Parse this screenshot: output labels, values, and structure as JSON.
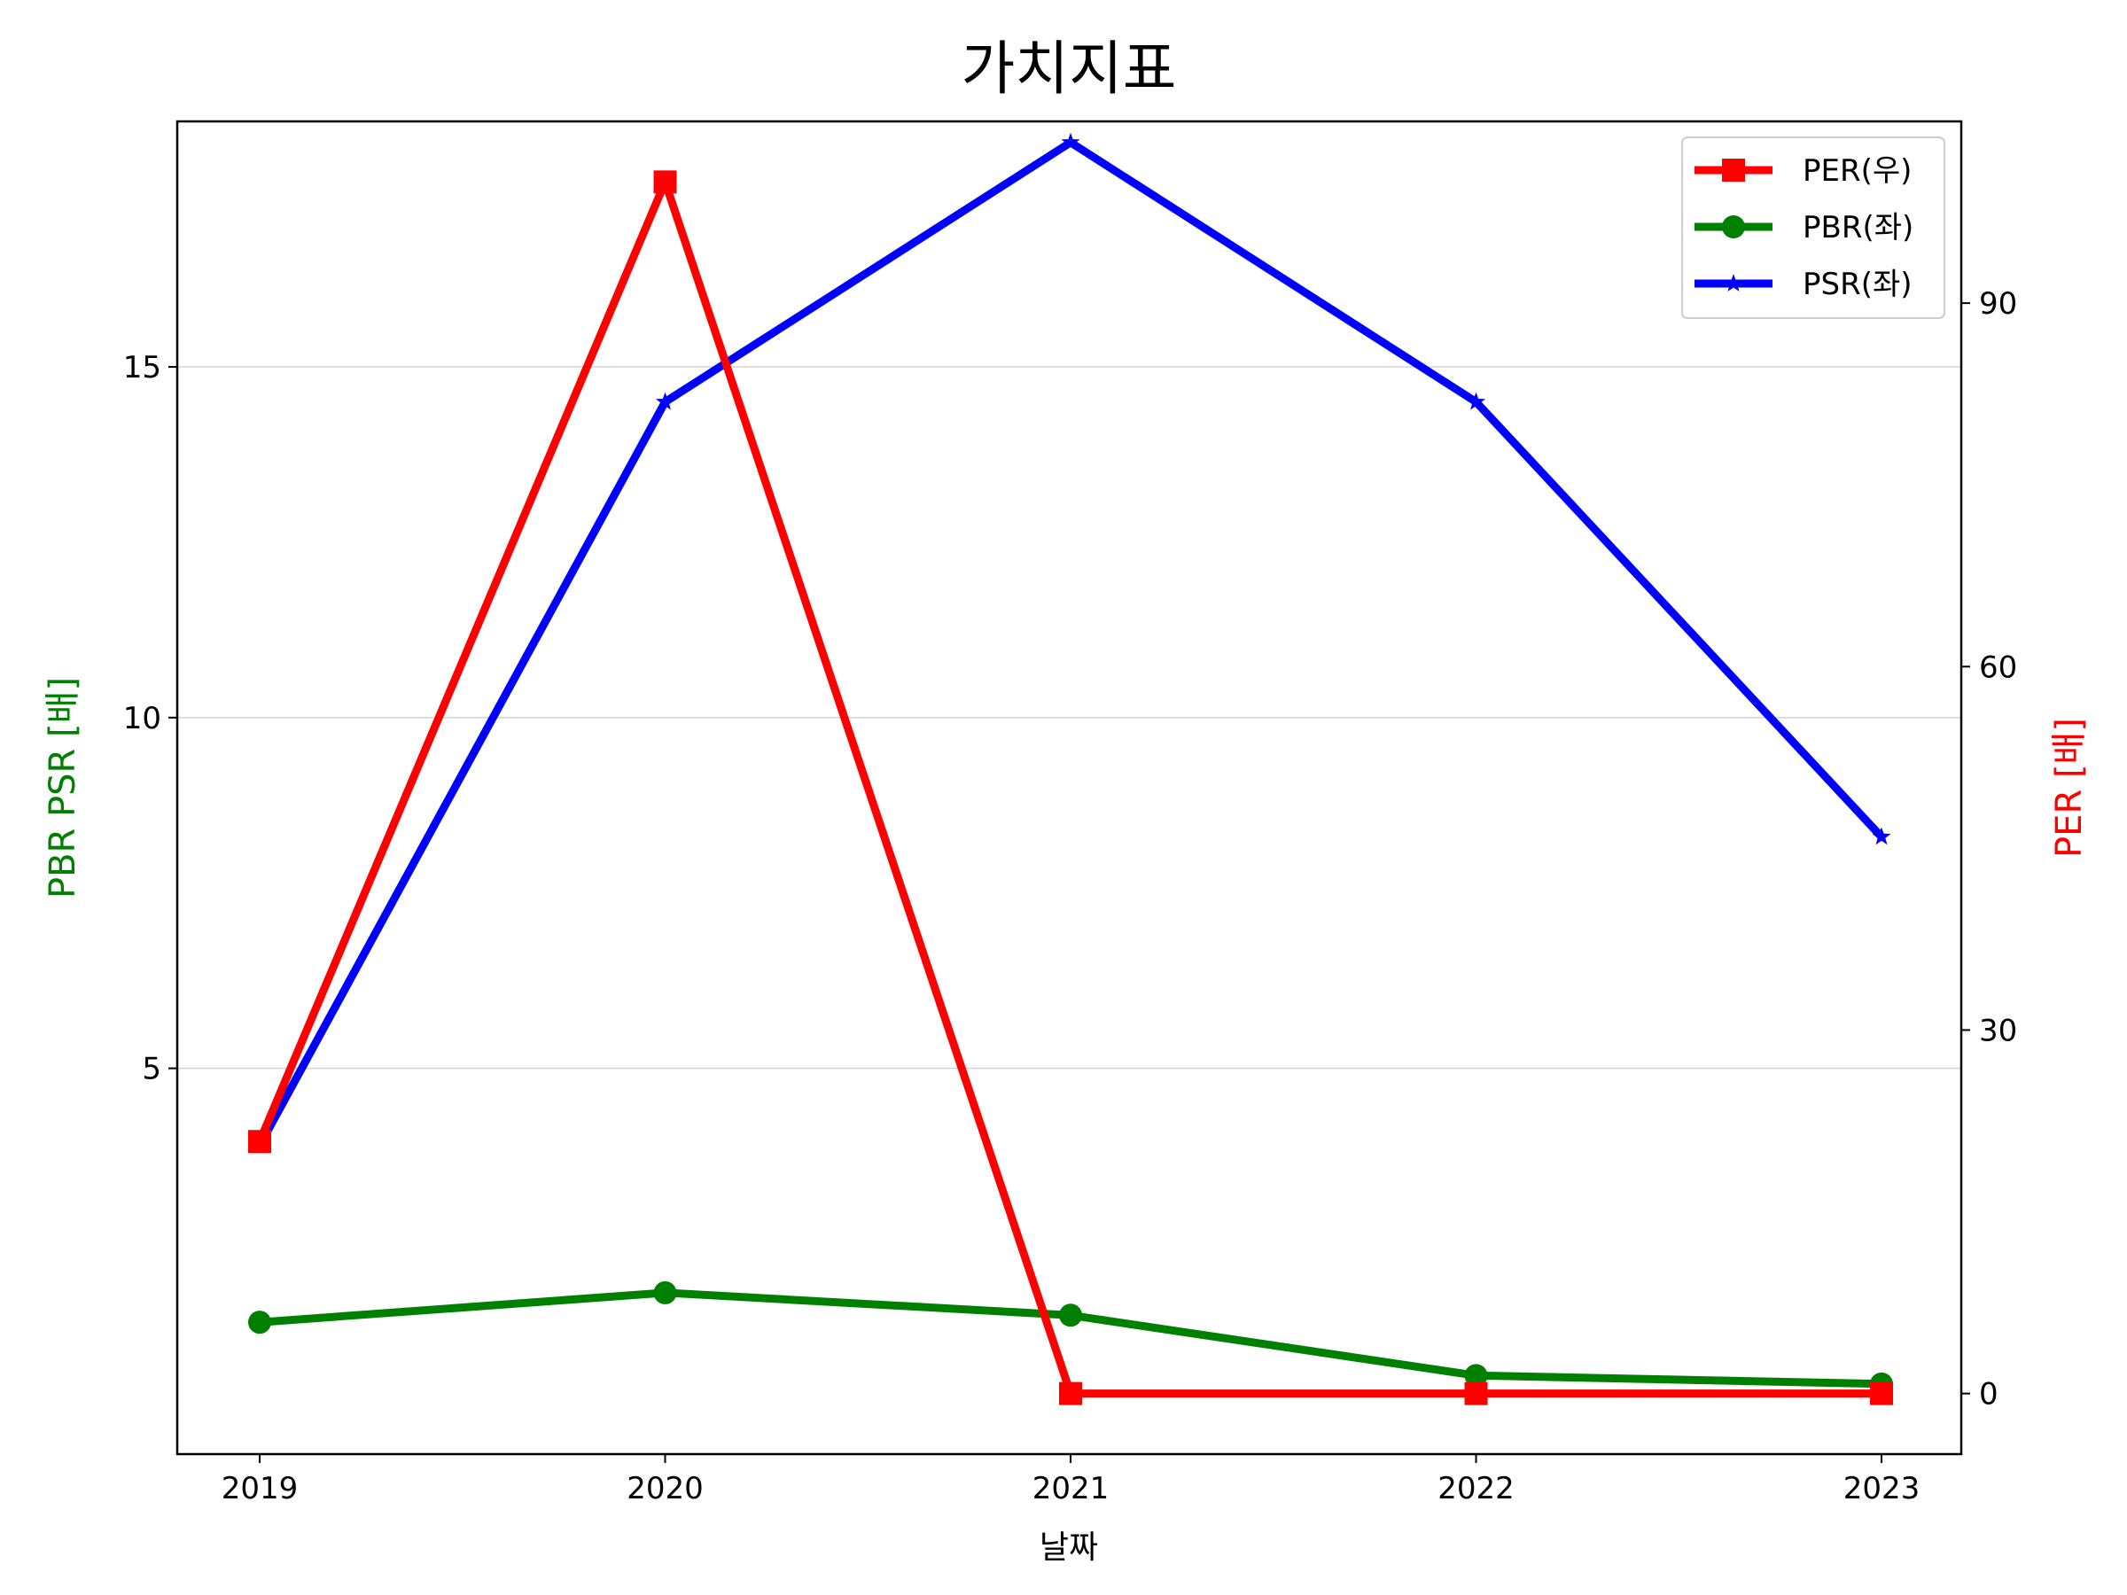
{
  "chart_data": {
    "type": "line",
    "title": "가치지표",
    "xlabel": "날짜",
    "ylabel_left": "PBR PSR [배]",
    "ylabel_right": "PER [배]",
    "x": [
      "2019",
      "2020",
      "2021",
      "2022",
      "2023"
    ],
    "ylim_left": [
      -0.5,
      18.5
    ],
    "ylim_right": [
      -5.0,
      105.0
    ],
    "yticks_left": [
      5,
      10,
      15
    ],
    "yticks_right": [
      0,
      30,
      60,
      90
    ],
    "grid": "horizontal",
    "legend_position": "top-right",
    "series": [
      {
        "name": "PER(우)",
        "axis": "right",
        "color": "#ff0000",
        "marker": "square",
        "values": [
          20.8,
          100.0,
          0.0,
          0.0,
          0.0
        ]
      },
      {
        "name": "PBR(좌)",
        "axis": "left",
        "color": "#008000",
        "marker": "circle",
        "values": [
          1.38,
          1.8,
          1.48,
          0.62,
          0.5
        ]
      },
      {
        "name": "PSR(좌)",
        "axis": "left",
        "color": "#0000ff",
        "marker": "star",
        "values": [
          3.9,
          14.5,
          18.2,
          14.5,
          8.3
        ]
      }
    ],
    "axis_label_colors": {
      "left": "#008000",
      "right": "#ff0000"
    }
  }
}
